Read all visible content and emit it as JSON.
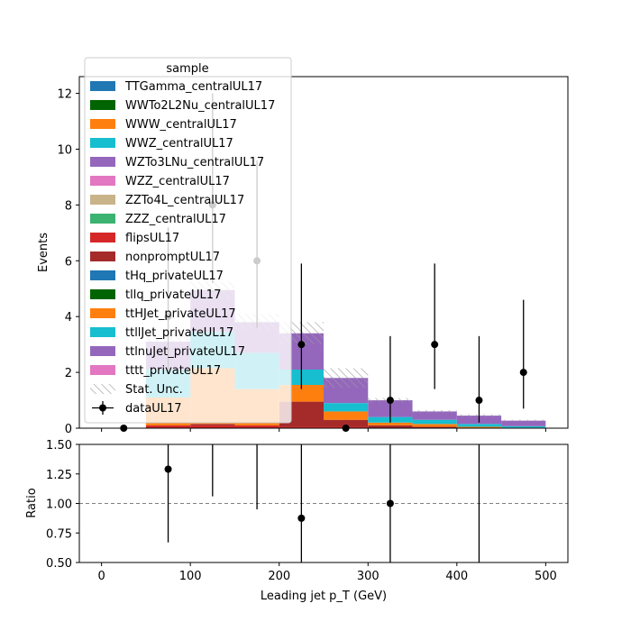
{
  "chart_data": [
    {
      "type": "bar",
      "stacked": true,
      "xlabel": "Leading jet  p_T (GeV)",
      "ylabel": "Events",
      "xlim": [
        -25,
        525
      ],
      "ylim": [
        0,
        12.6
      ],
      "bin_edges": [
        0,
        50,
        100,
        150,
        200,
        250,
        300,
        350,
        400,
        450,
        500
      ],
      "xticks": [
        0,
        100,
        200,
        300,
        400,
        500
      ],
      "yticks": [
        0,
        2,
        4,
        6,
        8,
        10,
        12
      ],
      "legend": {
        "title": "sample",
        "placement": "upper-left",
        "entries": [
          {
            "name": "TTGamma_centralUL17",
            "color": "#1f77b4",
            "kind": "patch"
          },
          {
            "name": "WWTo2L2Nu_centralUL17",
            "color": "#006400",
            "kind": "patch"
          },
          {
            "name": "WWW_centralUL17",
            "color": "#ff7f0e",
            "kind": "patch"
          },
          {
            "name": "WWZ_centralUL17",
            "color": "#17becf",
            "kind": "patch"
          },
          {
            "name": "WZTo3LNu_centralUL17",
            "color": "#9467bd",
            "kind": "patch"
          },
          {
            "name": "WZZ_centralUL17",
            "color": "#e377c2",
            "kind": "patch"
          },
          {
            "name": "ZZTo4L_centralUL17",
            "color": "#c9b38a",
            "kind": "patch"
          },
          {
            "name": "ZZZ_centralUL17",
            "color": "#3cb371",
            "kind": "patch"
          },
          {
            "name": "flipsUL17",
            "color": "#d62728",
            "kind": "patch"
          },
          {
            "name": "nonpromptUL17",
            "color": "#a52a2a",
            "kind": "patch"
          },
          {
            "name": "tHq_privateUL17",
            "color": "#1f77b4",
            "kind": "patch"
          },
          {
            "name": "tllq_privateUL17",
            "color": "#006400",
            "kind": "patch"
          },
          {
            "name": "ttHJet_privateUL17",
            "color": "#ff7f0e",
            "kind": "patch"
          },
          {
            "name": "ttllJet_privateUL17",
            "color": "#17becf",
            "kind": "patch"
          },
          {
            "name": "ttlnuJet_privateUL17",
            "color": "#9467bd",
            "kind": "patch"
          },
          {
            "name": "tttt_privateUL17",
            "color": "#e377c2",
            "kind": "patch"
          },
          {
            "name": "Stat. Unc.",
            "color": "#9a9a9a",
            "kind": "hatch"
          },
          {
            "name": "dataUL17",
            "color": "#000000",
            "kind": "errorbar"
          }
        ]
      },
      "stack_order": [
        "flipsUL17",
        "nonpromptUL17",
        "ttHJet_privateUL17",
        "ttllJet_privateUL17",
        "ttlnuJet_privateUL17"
      ],
      "series": [
        {
          "name": "flipsUL17",
          "values": [
            0.0,
            0.1,
            0.1,
            0.1,
            0.05,
            0.05,
            0.0,
            0.0,
            0.0,
            0.0
          ]
        },
        {
          "name": "nonpromptUL17",
          "values": [
            0.0,
            0.0,
            0.05,
            0.0,
            0.9,
            0.25,
            0.1,
            0.05,
            0.0,
            0.0
          ]
        },
        {
          "name": "ttHJet_privateUL17",
          "values": [
            0.0,
            1.0,
            2.0,
            1.3,
            0.6,
            0.3,
            0.1,
            0.1,
            0.05,
            0.02
          ]
        },
        {
          "name": "ttllJet_privateUL17",
          "values": [
            0.0,
            1.0,
            1.3,
            1.3,
            0.55,
            0.3,
            0.2,
            0.15,
            0.1,
            0.05
          ]
        },
        {
          "name": "ttlnuJet_privateUL17",
          "values": [
            0.0,
            1.0,
            1.5,
            1.1,
            1.3,
            0.9,
            0.6,
            0.3,
            0.3,
            0.2
          ]
        }
      ],
      "stat_unc": [
        0.0,
        0.25,
        0.3,
        0.3,
        0.4,
        0.35,
        0.08,
        0.05,
        0.05,
        0.03
      ],
      "data": {
        "name": "dataUL17",
        "x": [
          25,
          75,
          125,
          175,
          225,
          275,
          325,
          375,
          425,
          475
        ],
        "y": [
          0,
          4,
          8,
          6,
          3,
          0,
          1,
          3,
          1,
          2
        ],
        "err_lo": [
          0,
          2.0,
          2.8,
          2.4,
          1.6,
          0,
          0.8,
          1.6,
          0.8,
          1.3
        ],
        "err_hi": [
          0,
          3.2,
          4.0,
          3.6,
          2.9,
          0,
          2.3,
          2.9,
          2.3,
          2.6
        ]
      }
    },
    {
      "type": "scatter",
      "xlabel": "Leading jet  p_T (GeV)",
      "ylabel": "Ratio",
      "xlim": [
        -25,
        525
      ],
      "ylim": [
        0.5,
        1.5
      ],
      "xticks": [
        0,
        100,
        200,
        300,
        400,
        500
      ],
      "yticks": [
        0.5,
        0.75,
        1.0,
        1.25,
        1.5
      ],
      "reference_line": 1.0,
      "points": [
        {
          "x": 75,
          "y": 1.29,
          "lo": 0.67,
          "hi": 1.5
        },
        {
          "x": 225,
          "y": 0.875,
          "lo": 0.5,
          "hi": 1.5
        },
        {
          "x": 325,
          "y": 1.0,
          "lo": 0.5,
          "hi": 1.5
        }
      ],
      "errors_only": [
        {
          "x": 125,
          "lo": 1.06,
          "hi": 1.5
        },
        {
          "x": 175,
          "lo": 0.95,
          "hi": 1.5
        },
        {
          "x": 425,
          "lo": 0.5,
          "hi": 1.5
        }
      ]
    }
  ]
}
